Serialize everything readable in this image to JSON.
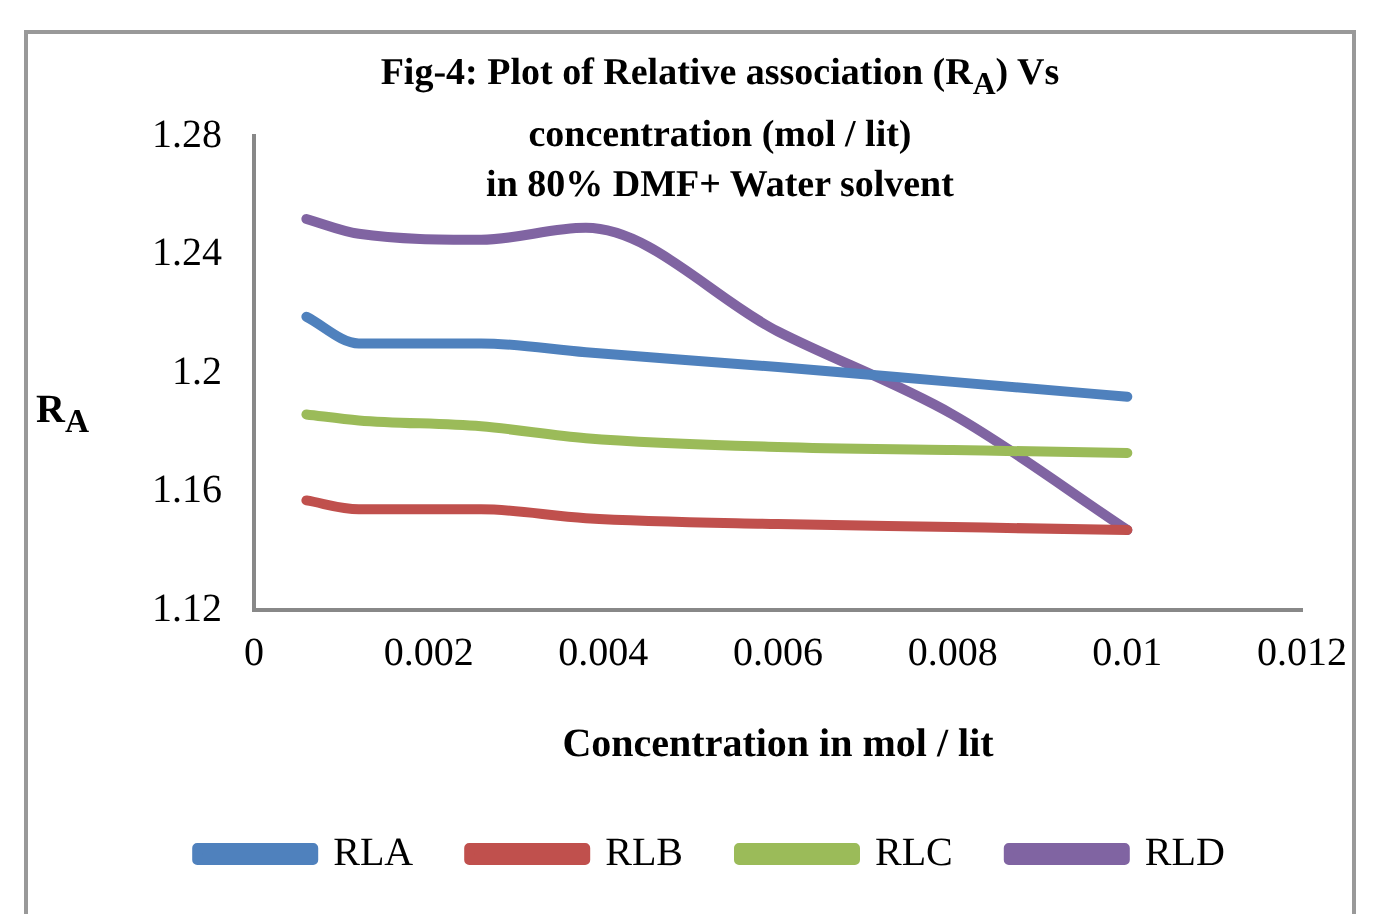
{
  "chart_data": {
    "type": "line",
    "title": "Fig-4: Plot of Relative association  (R$_{A}$) Vs concentration (mol / lit)\nin 80% DMF+ Water solvent",
    "xlabel": "Concentration in mol / lit",
    "ylabel": "R$_{A}$",
    "x": [
      0.0006,
      0.0012,
      0.0026,
      0.0038,
      0.006,
      0.008,
      0.01
    ],
    "series": [
      {
        "name": "RLA",
        "color": "#4f81bd",
        "values": [
          1.219,
          1.21,
          1.21,
          1.207,
          1.202,
          1.197,
          1.192
        ]
      },
      {
        "name": "RLB",
        "color": "#c0504d",
        "values": [
          1.157,
          1.154,
          1.154,
          1.151,
          1.149,
          1.148,
          1.147
        ]
      },
      {
        "name": "RLC",
        "color": "#9bbb59",
        "values": [
          1.186,
          1.184,
          1.182,
          1.178,
          1.175,
          1.174,
          1.173
        ]
      },
      {
        "name": "RLD",
        "color": "#8064a2",
        "values": [
          1.252,
          1.247,
          1.245,
          1.249,
          1.214,
          1.186,
          1.147
        ]
      }
    ],
    "xlim": [
      0,
      0.012
    ],
    "xticks": [
      0,
      0.002,
      0.004,
      0.006,
      0.008,
      0.01,
      0.012
    ],
    "ylim": [
      1.12,
      1.28
    ],
    "yticks": [
      1.12,
      1.16,
      1.2,
      1.24,
      1.28
    ],
    "legend": "bottom",
    "marker": "none",
    "line_style": "solid"
  }
}
